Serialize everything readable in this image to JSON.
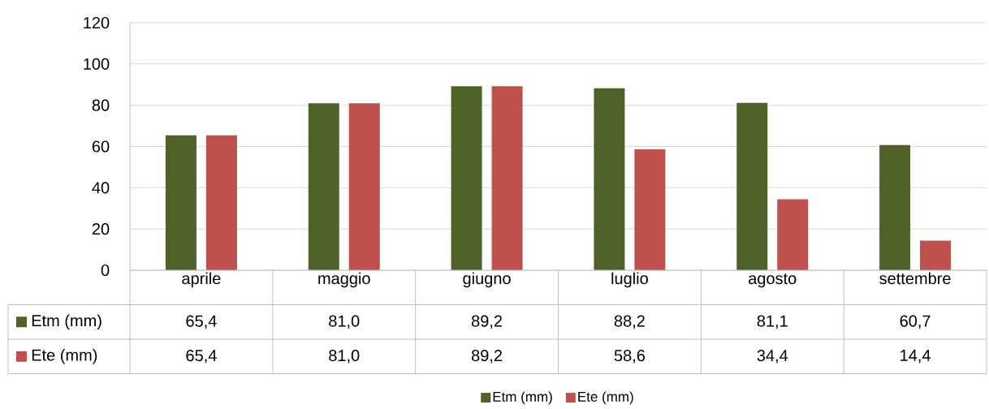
{
  "chart_data": {
    "type": "bar",
    "categories": [
      "aprile",
      "maggio",
      "giugno",
      "luglio",
      "agosto",
      "settembre"
    ],
    "series": [
      {
        "name": "Etm (mm)",
        "color": "#4f6228",
        "values": [
          65.4,
          81.0,
          89.2,
          88.2,
          81.1,
          60.7
        ],
        "value_labels": [
          "65,4",
          "81,0",
          "89,2",
          "88,2",
          "81,1",
          "60,7"
        ]
      },
      {
        "name": "Ete (mm)",
        "color": "#c0504d",
        "values": [
          65.4,
          81.0,
          89.2,
          58.6,
          34.4,
          14.4
        ],
        "value_labels": [
          "65,4",
          "81,0",
          "89,2",
          "58,6",
          "34,4",
          "14,4"
        ]
      }
    ],
    "ylim": [
      0,
      120
    ],
    "yticks": [
      0,
      20,
      40,
      60,
      80,
      100,
      120
    ],
    "grid": "y",
    "legend": "bottom"
  }
}
